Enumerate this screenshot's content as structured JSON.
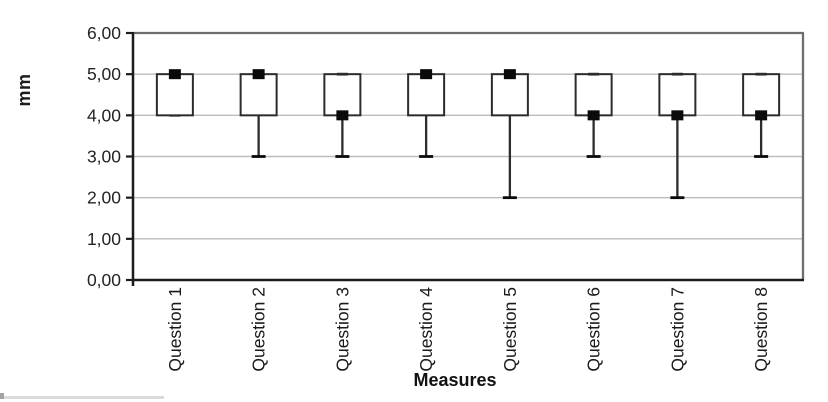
{
  "chart_data": {
    "type": "boxplot",
    "title": "",
    "xlabel": "Measures",
    "ylabel": "mm",
    "ylim": [
      0,
      6
    ],
    "y_ticks": [
      6,
      5,
      4,
      3,
      2,
      1,
      0
    ],
    "y_tick_labels": [
      "6,00",
      "5,00",
      "4,00",
      "3,00",
      "2,00",
      "1,00",
      "0,00"
    ],
    "grid": "horizontal",
    "legend": "none",
    "categories": [
      "Question 1",
      "Question 2",
      "Question 3",
      "Question 4",
      "Question 5",
      "Question 6",
      "Question 7",
      "Question 8"
    ],
    "series": [
      {
        "category": "Question 1",
        "q1": 4,
        "median": 5,
        "q3": 5,
        "whisker_min": 4,
        "whisker_max": 5
      },
      {
        "category": "Question 2",
        "q1": 4,
        "median": 5,
        "q3": 5,
        "whisker_min": 3,
        "whisker_max": 5
      },
      {
        "category": "Question 3",
        "q1": 4,
        "median": 4,
        "q3": 5,
        "whisker_min": 3,
        "whisker_max": 5
      },
      {
        "category": "Question 4",
        "q1": 4,
        "median": 5,
        "q3": 5,
        "whisker_min": 3,
        "whisker_max": 5
      },
      {
        "category": "Question 5",
        "q1": 4,
        "median": 5,
        "q3": 5,
        "whisker_min": 2,
        "whisker_max": 5
      },
      {
        "category": "Question 6",
        "q1": 4,
        "median": 4,
        "q3": 5,
        "whisker_min": 3,
        "whisker_max": 5
      },
      {
        "category": "Question 7",
        "q1": 4,
        "median": 4,
        "q3": 5,
        "whisker_min": 2,
        "whisker_max": 5
      },
      {
        "category": "Question 8",
        "q1": 4,
        "median": 4,
        "q3": 5,
        "whisker_min": 3,
        "whisker_max": 5
      }
    ]
  },
  "colors": {
    "background": "#ffffff",
    "gridline": "#bcbcbc",
    "plot_border": "#6e6e6e",
    "axis": "#1c1c1c",
    "box_stroke": "#2c2c2c",
    "box_fill": "#ffffff",
    "median_marker": "#0a0a0a",
    "tick_label_text": "#232323",
    "category_label_text": "#1a1a1a"
  }
}
